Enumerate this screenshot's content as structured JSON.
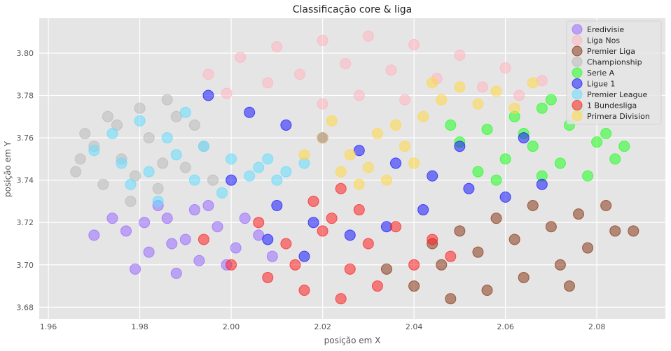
{
  "chart_data": {
    "type": "scatter",
    "title": "Classificação core & liga",
    "xlabel": "posição em X",
    "ylabel": "posição em Y",
    "xlim": [
      1.958,
      2.095
    ],
    "ylim": [
      3.6745,
      3.8165
    ],
    "xticks": [
      1.96,
      1.98,
      2.0,
      2.02,
      2.04,
      2.06,
      2.08
    ],
    "xtick_labels": [
      "1.96",
      "1.98",
      "2.00",
      "2.02",
      "2.04",
      "2.06",
      "2.08"
    ],
    "yticks": [
      3.68,
      3.7,
      3.72,
      3.74,
      3.76,
      3.78,
      3.8
    ],
    "ytick_labels": [
      "3.68",
      "3.70",
      "3.72",
      "3.74",
      "3.76",
      "3.78",
      "3.80"
    ],
    "grid": true,
    "legend_position": "top-right",
    "background": "#e5e5e5",
    "series": [
      {
        "name": "Eredivisie",
        "color": "#9b6bff",
        "points": [
          [
            1.977,
            3.716
          ],
          [
            1.982,
            3.706
          ],
          [
            1.986,
            3.722
          ],
          [
            1.99,
            3.712
          ],
          [
            1.993,
            3.702
          ],
          [
            1.997,
            3.718
          ],
          [
            2.001,
            3.708
          ],
          [
            1.984,
            3.728
          ],
          [
            1.979,
            3.698
          ],
          [
            1.988,
            3.696
          ],
          [
            1.995,
            3.728
          ],
          [
            2.003,
            3.722
          ],
          [
            1.974,
            3.722
          ],
          [
            1.97,
            3.714
          ],
          [
            1.992,
            3.726
          ],
          [
            1.999,
            3.7
          ],
          [
            2.006,
            3.714
          ],
          [
            2.009,
            3.704
          ],
          [
            1.981,
            3.72
          ],
          [
            1.987,
            3.71
          ]
        ]
      },
      {
        "name": "Liga Nos",
        "color": "#ffb6c1",
        "points": [
          [
            1.995,
            3.79
          ],
          [
            2.002,
            3.798
          ],
          [
            2.01,
            3.803
          ],
          [
            2.02,
            3.806
          ],
          [
            2.03,
            3.808
          ],
          [
            2.04,
            3.804
          ],
          [
            2.05,
            3.799
          ],
          [
            2.06,
            3.793
          ],
          [
            2.068,
            3.787
          ],
          [
            2.015,
            3.79
          ],
          [
            2.025,
            3.795
          ],
          [
            2.035,
            3.792
          ],
          [
            2.045,
            3.788
          ],
          [
            2.055,
            3.784
          ],
          [
            2.008,
            3.786
          ],
          [
            2.028,
            3.78
          ],
          [
            2.038,
            3.778
          ],
          [
            1.999,
            3.781
          ],
          [
            2.063,
            3.78
          ],
          [
            2.02,
            3.776
          ]
        ]
      },
      {
        "name": "Premier Liga",
        "color": "#8b3a1a",
        "points": [
          [
            2.04,
            3.69
          ],
          [
            2.048,
            3.684
          ],
          [
            2.056,
            3.688
          ],
          [
            2.064,
            3.694
          ],
          [
            2.072,
            3.7
          ],
          [
            2.078,
            3.708
          ],
          [
            2.084,
            3.716
          ],
          [
            2.088,
            3.716
          ],
          [
            2.046,
            3.7
          ],
          [
            2.054,
            3.706
          ],
          [
            2.062,
            3.712
          ],
          [
            2.07,
            3.718
          ],
          [
            2.076,
            3.724
          ],
          [
            2.082,
            3.728
          ],
          [
            2.05,
            3.716
          ],
          [
            2.058,
            3.722
          ],
          [
            2.066,
            3.728
          ],
          [
            2.044,
            3.71
          ],
          [
            2.034,
            3.698
          ],
          [
            2.074,
            3.69
          ]
        ]
      },
      {
        "name": "Championship",
        "color": "#bbbbbb",
        "points": [
          [
            1.966,
            3.744
          ],
          [
            1.97,
            3.756
          ],
          [
            1.975,
            3.766
          ],
          [
            1.98,
            3.774
          ],
          [
            1.986,
            3.778
          ],
          [
            1.972,
            3.738
          ],
          [
            1.978,
            3.73
          ],
          [
            1.984,
            3.736
          ],
          [
            1.99,
            3.746
          ],
          [
            1.994,
            3.756
          ],
          [
            1.976,
            3.75
          ],
          [
            1.982,
            3.76
          ],
          [
            1.988,
            3.77
          ],
          [
            1.968,
            3.762
          ],
          [
            1.973,
            3.77
          ],
          [
            1.996,
            3.74
          ],
          [
            1.985,
            3.748
          ],
          [
            1.979,
            3.742
          ],
          [
            1.992,
            3.766
          ],
          [
            1.967,
            3.75
          ]
        ]
      },
      {
        "name": "Serie A",
        "color": "#22ff22",
        "points": [
          [
            2.05,
            3.758
          ],
          [
            2.056,
            3.764
          ],
          [
            2.062,
            3.77
          ],
          [
            2.068,
            3.774
          ],
          [
            2.074,
            3.766
          ],
          [
            2.08,
            3.758
          ],
          [
            2.084,
            3.75
          ],
          [
            2.06,
            3.75
          ],
          [
            2.066,
            3.756
          ],
          [
            2.072,
            3.748
          ],
          [
            2.078,
            3.742
          ],
          [
            2.054,
            3.744
          ],
          [
            2.07,
            3.778
          ],
          [
            2.076,
            3.774
          ],
          [
            2.082,
            3.762
          ],
          [
            2.058,
            3.74
          ],
          [
            2.064,
            3.762
          ],
          [
            2.086,
            3.756
          ],
          [
            2.048,
            3.766
          ],
          [
            2.068,
            3.742
          ]
        ]
      },
      {
        "name": "Ligue 1",
        "color": "#1a1aff",
        "points": [
          [
            1.995,
            3.78
          ],
          [
            2.004,
            3.772
          ],
          [
            2.012,
            3.766
          ],
          [
            2.02,
            3.76
          ],
          [
            2.028,
            3.754
          ],
          [
            2.036,
            3.748
          ],
          [
            2.044,
            3.742
          ],
          [
            2.052,
            3.736
          ],
          [
            2.06,
            3.732
          ],
          [
            2.068,
            3.738
          ],
          [
            2.0,
            3.74
          ],
          [
            2.01,
            3.728
          ],
          [
            2.018,
            3.72
          ],
          [
            2.026,
            3.714
          ],
          [
            2.034,
            3.718
          ],
          [
            2.042,
            3.726
          ],
          [
            2.008,
            3.712
          ],
          [
            2.016,
            3.704
          ],
          [
            2.05,
            3.756
          ],
          [
            2.064,
            3.76
          ]
        ]
      },
      {
        "name": "Premier League",
        "color": "#66ddff",
        "points": [
          [
            1.97,
            3.754
          ],
          [
            1.976,
            3.748
          ],
          [
            1.982,
            3.744
          ],
          [
            1.988,
            3.752
          ],
          [
            1.994,
            3.756
          ],
          [
            2.0,
            3.75
          ],
          [
            2.006,
            3.746
          ],
          [
            2.012,
            3.744
          ],
          [
            2.016,
            3.748
          ],
          [
            1.974,
            3.762
          ],
          [
            1.98,
            3.768
          ],
          [
            1.986,
            3.76
          ],
          [
            1.992,
            3.74
          ],
          [
            1.998,
            3.734
          ],
          [
            2.004,
            3.742
          ],
          [
            2.008,
            3.75
          ],
          [
            1.984,
            3.73
          ],
          [
            2.01,
            3.74
          ],
          [
            1.978,
            3.738
          ],
          [
            1.99,
            3.772
          ]
        ]
      },
      {
        "name": "1 Bundesliga",
        "color": "#ff2222",
        "points": [
          [
            2.0,
            3.7
          ],
          [
            2.008,
            3.694
          ],
          [
            2.016,
            3.688
          ],
          [
            2.024,
            3.684
          ],
          [
            2.032,
            3.69
          ],
          [
            2.04,
            3.7
          ],
          [
            2.012,
            3.71
          ],
          [
            2.02,
            3.716
          ],
          [
            2.022,
            3.722
          ],
          [
            2.028,
            3.726
          ],
          [
            2.036,
            3.718
          ],
          [
            2.044,
            3.712
          ],
          [
            2.018,
            3.73
          ],
          [
            2.024,
            3.736
          ],
          [
            2.03,
            3.71
          ],
          [
            2.006,
            3.72
          ],
          [
            1.994,
            3.712
          ],
          [
            2.014,
            3.7
          ],
          [
            2.048,
            3.704
          ],
          [
            2.026,
            3.698
          ]
        ]
      },
      {
        "name": "Primera Division",
        "color": "#ffd84a",
        "points": [
          [
            2.02,
            3.76
          ],
          [
            2.026,
            3.752
          ],
          [
            2.03,
            3.746
          ],
          [
            2.034,
            3.74
          ],
          [
            2.038,
            3.756
          ],
          [
            2.042,
            3.77
          ],
          [
            2.046,
            3.778
          ],
          [
            2.05,
            3.784
          ],
          [
            2.054,
            3.776
          ],
          [
            2.058,
            3.782
          ],
          [
            2.062,
            3.774
          ],
          [
            2.024,
            3.744
          ],
          [
            2.028,
            3.738
          ],
          [
            2.032,
            3.762
          ],
          [
            2.036,
            3.766
          ],
          [
            2.04,
            3.748
          ],
          [
            2.016,
            3.752
          ],
          [
            2.044,
            3.786
          ],
          [
            2.066,
            3.786
          ],
          [
            2.022,
            3.768
          ]
        ]
      }
    ]
  }
}
